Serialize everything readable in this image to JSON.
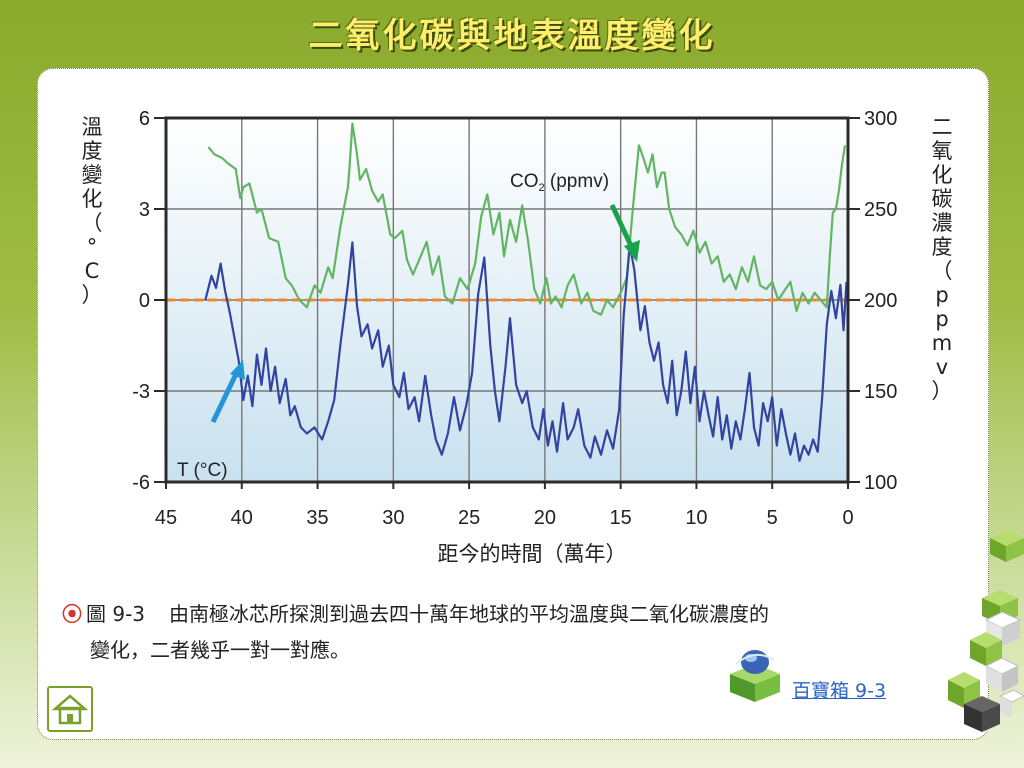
{
  "page_title": "二氧化碳與地表溫度變化",
  "caption": {
    "figure_label": "圖 9-3",
    "line1": "由南極冰芯所探測到過去四十萬年地球的平均溫度與二氧化碳濃度的",
    "line2": "變化，二者幾乎一對一對應。"
  },
  "treasure_link": "百寶箱 9-3",
  "colors": {
    "co2_line": "#62b562",
    "temp_line": "#3344a0",
    "zero_line": "#ef8a2a",
    "co2_arrow": "#1aa24a",
    "temp_arrow": "#2496d8",
    "plot_bg_top": "#ffffff",
    "plot_bg_bottom": "#c9e1ef"
  },
  "chart_data": {
    "type": "line",
    "xlabel": "距今的時間（萬年）",
    "ylabel_left": "溫度變化（°C）",
    "ylabel_right": "二氧化碳濃度（ppmv）",
    "xlim": [
      45,
      0
    ],
    "x_ticks": [
      45,
      40,
      35,
      30,
      25,
      20,
      15,
      10,
      5,
      0
    ],
    "ylim_left": [
      -6,
      6
    ],
    "y_ticks_left": [
      6,
      3,
      0,
      -3,
      -6
    ],
    "ylim_right": [
      100,
      300
    ],
    "y_ticks_right": [
      300,
      250,
      200,
      150,
      100
    ],
    "grid": true,
    "reference_line": {
      "axis": "left",
      "value": 0,
      "style": "dashed"
    },
    "annotations": {
      "co2_label": "CO",
      "co2_sub": "2",
      "co2_unit": " (ppmv)",
      "temp_label": "T (°C)"
    },
    "series": [
      {
        "name": "CO2 (ppmv)",
        "axis": "right",
        "x": [
          42.2,
          41.8,
          41.3,
          40.9,
          40.4,
          40.1,
          39.9,
          39.5,
          39.0,
          38.7,
          38.2,
          37.6,
          37.1,
          36.7,
          36.2,
          35.7,
          35.2,
          34.8,
          34.3,
          34.0,
          33.5,
          33.0,
          32.9,
          32.7,
          32.4,
          32.2,
          31.8,
          31.4,
          31.0,
          30.7,
          30.2,
          29.9,
          29.4,
          29.1,
          28.7,
          28.3,
          27.8,
          27.4,
          27.0,
          26.6,
          26.1,
          25.6,
          25.1,
          24.6,
          24.2,
          23.8,
          23.4,
          23.0,
          22.7,
          22.3,
          21.9,
          21.5,
          21.1,
          20.7,
          20.3,
          19.9,
          19.6,
          19.3,
          18.9,
          18.5,
          18.1,
          17.6,
          17.2,
          16.8,
          16.3,
          15.9,
          15.5,
          15.0,
          14.6,
          14.2,
          13.8,
          13.5,
          13.2,
          12.9,
          12.6,
          12.3,
          12.1,
          11.8,
          11.4,
          11.0,
          10.6,
          10.2,
          9.8,
          9.4,
          9.0,
          8.6,
          8.2,
          7.8,
          7.4,
          7.0,
          6.6,
          6.2,
          5.8,
          5.4,
          5.0,
          4.6,
          4.2,
          3.8,
          3.4,
          3.0,
          2.6,
          2.2,
          1.8,
          1.4,
          1.2,
          1.0,
          0.8,
          0.6,
          0.4,
          0.2
        ],
        "values": [
          284,
          280,
          278,
          275,
          272,
          256,
          262,
          264,
          248,
          250,
          234,
          232,
          212,
          208,
          200,
          196,
          208,
          204,
          218,
          212,
          240,
          262,
          272,
          297,
          280,
          266,
          272,
          260,
          254,
          258,
          236,
          234,
          238,
          222,
          214,
          222,
          232,
          214,
          224,
          202,
          198,
          212,
          206,
          220,
          246,
          258,
          236,
          248,
          224,
          244,
          232,
          252,
          232,
          206,
          198,
          212,
          198,
          202,
          196,
          208,
          214,
          198,
          204,
          194,
          192,
          200,
          196,
          204,
          212,
          250,
          285,
          278,
          270,
          280,
          262,
          270,
          270,
          250,
          240,
          236,
          230,
          238,
          226,
          232,
          220,
          224,
          210,
          214,
          206,
          218,
          210,
          224,
          208,
          206,
          210,
          200,
          205,
          210,
          194,
          204,
          198,
          204,
          200,
          196,
          224,
          248,
          250,
          260,
          274,
          285
        ]
      },
      {
        "name": "T (°C)",
        "axis": "left",
        "x": [
          42.4,
          42.0,
          41.7,
          41.4,
          41.1,
          40.8,
          40.5,
          40.2,
          39.9,
          39.6,
          39.3,
          39.0,
          38.7,
          38.4,
          38.1,
          37.8,
          37.5,
          37.1,
          36.8,
          36.5,
          36.1,
          35.7,
          35.2,
          34.7,
          34.3,
          33.9,
          33.5,
          33.0,
          32.7,
          32.4,
          32.1,
          31.7,
          31.4,
          31.0,
          30.7,
          30.3,
          30.0,
          29.6,
          29.3,
          29.0,
          28.6,
          28.3,
          27.9,
          27.5,
          27.2,
          26.8,
          26.4,
          26.0,
          25.6,
          25.2,
          24.8,
          24.4,
          24.0,
          23.6,
          23.3,
          23.0,
          22.6,
          22.3,
          21.9,
          21.5,
          21.2,
          20.8,
          20.4,
          20.1,
          19.8,
          19.5,
          19.2,
          18.8,
          18.5,
          18.1,
          17.8,
          17.4,
          17.0,
          16.7,
          16.3,
          15.9,
          15.5,
          15.1,
          14.8,
          14.4,
          14.1,
          13.7,
          13.4,
          13.1,
          12.8,
          12.5,
          12.2,
          11.9,
          11.6,
          11.3,
          11.0,
          10.7,
          10.4,
          10.1,
          9.8,
          9.5,
          9.2,
          8.9,
          8.6,
          8.3,
          8.0,
          7.7,
          7.4,
          7.1,
          6.8,
          6.5,
          6.2,
          5.9,
          5.6,
          5.3,
          5.0,
          4.7,
          4.4,
          4.1,
          3.8,
          3.5,
          3.2,
          2.9,
          2.6,
          2.3,
          2.0,
          1.7,
          1.4,
          1.1,
          0.8,
          0.5,
          0.3,
          0.1
        ],
        "values": [
          0.0,
          0.8,
          0.4,
          1.2,
          0.3,
          -0.4,
          -1.2,
          -2.0,
          -3.3,
          -2.5,
          -3.5,
          -1.8,
          -2.8,
          -1.6,
          -3.0,
          -2.2,
          -3.4,
          -2.6,
          -3.8,
          -3.5,
          -4.2,
          -4.4,
          -4.2,
          -4.6,
          -4.0,
          -3.3,
          -1.5,
          0.5,
          1.9,
          -0.2,
          -1.2,
          -0.8,
          -1.6,
          -1.0,
          -2.2,
          -1.5,
          -2.8,
          -3.2,
          -2.4,
          -3.6,
          -3.2,
          -4.0,
          -2.5,
          -3.8,
          -4.6,
          -5.1,
          -4.4,
          -3.2,
          -4.3,
          -3.5,
          -2.4,
          0.2,
          1.4,
          -1.5,
          -3.0,
          -4.0,
          -2.2,
          -0.6,
          -2.8,
          -3.4,
          -3.0,
          -4.2,
          -4.6,
          -3.6,
          -4.8,
          -4.0,
          -5.0,
          -3.4,
          -4.6,
          -4.2,
          -3.6,
          -4.8,
          -5.2,
          -4.5,
          -5.1,
          -4.3,
          -4.9,
          -3.6,
          -0.5,
          1.8,
          1.0,
          -1.0,
          -0.2,
          -1.4,
          -2.0,
          -1.4,
          -2.8,
          -3.4,
          -2.0,
          -3.8,
          -3.0,
          -1.7,
          -3.4,
          -2.2,
          -4.0,
          -3.0,
          -3.8,
          -4.5,
          -3.2,
          -4.6,
          -3.8,
          -4.9,
          -4.0,
          -4.6,
          -3.6,
          -2.4,
          -4.2,
          -4.8,
          -3.4,
          -4.0,
          -3.2,
          -4.8,
          -3.6,
          -4.4,
          -5.1,
          -4.4,
          -5.3,
          -4.8,
          -5.1,
          -4.6,
          -5.0,
          -3.2,
          -0.8,
          0.3,
          -0.6,
          0.5,
          -1.0,
          0.6
        ]
      }
    ]
  }
}
